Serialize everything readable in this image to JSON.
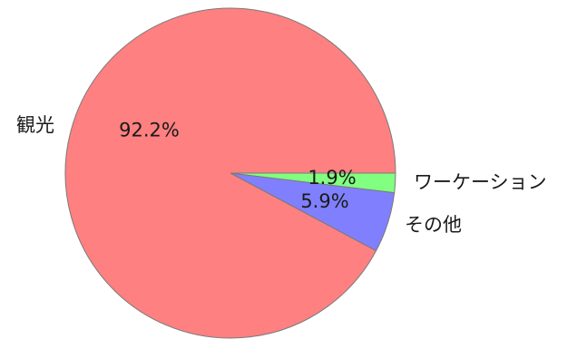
{
  "chart_data": {
    "type": "pie",
    "title": "",
    "slices": [
      {
        "label": "ワーケーション",
        "value": 1.9,
        "value_label": "1.9%",
        "color": "#80ff80"
      },
      {
        "label": "その他",
        "value": 5.9,
        "value_label": "5.9%",
        "color": "#8080ff"
      },
      {
        "label": "観光",
        "value": 92.2,
        "value_label": "92.2%",
        "color": "#ff8080"
      }
    ],
    "start_angle_deg": 0,
    "direction": "clockwise",
    "legend": "none"
  }
}
